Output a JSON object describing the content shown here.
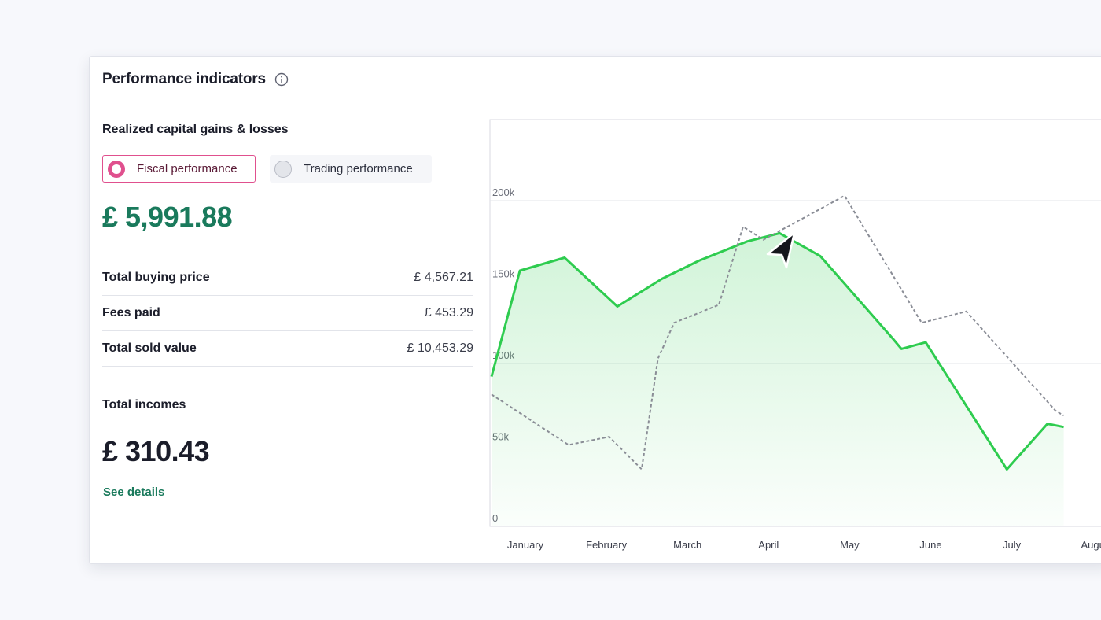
{
  "card": {
    "title": "Performance indicators",
    "info_icon": "info-circle-icon"
  },
  "realized": {
    "title": "Realized capital gains & losses",
    "toggles": {
      "fiscal": "Fiscal performance",
      "trading": "Trading performance",
      "selected": "fiscal"
    },
    "total_value": "£ 5,991.88",
    "rows": [
      {
        "label": "Total buying price",
        "value": "£ 4,567.21"
      },
      {
        "label": "Fees paid",
        "value": "£ 453.29"
      },
      {
        "label": "Total sold value",
        "value": "£ 10,453.29"
      }
    ]
  },
  "incomes": {
    "title": "Total incomes",
    "value": "£ 310.43",
    "link": "See details"
  },
  "colors": {
    "accent_pink": "#e0508e",
    "green_value": "#1a7a5c",
    "series_green": "#2ecc4f",
    "series_dashed": "#8a8d96"
  },
  "chart_data": {
    "type": "area",
    "x_labels": [
      "January",
      "February",
      "March",
      "April",
      "May",
      "June",
      "July",
      "Augu"
    ],
    "y_ticks": [
      0,
      50000,
      100000,
      150000,
      200000
    ],
    "y_tick_labels": [
      "0",
      "50k",
      "100k",
      "150k",
      "200k"
    ],
    "ylim": [
      0,
      250000
    ],
    "grid": true,
    "series": [
      {
        "style": "solid-area",
        "x": [
          0,
          0.35,
          0.9,
          1.55,
          2.1,
          2.55,
          3.15,
          3.55,
          4.05,
          4.95,
          5.05,
          5.35,
          6.35,
          6.85,
          7.05
        ],
        "values": [
          92000,
          157000,
          165000,
          135000,
          152000,
          163000,
          175000,
          180000,
          166000,
          115000,
          109000,
          113000,
          35000,
          63000,
          61000
        ]
      },
      {
        "style": "dashed",
        "x": [
          0,
          0.95,
          1.45,
          1.85,
          2.05,
          2.25,
          2.8,
          3.1,
          3.35,
          4.35,
          5.3,
          5.85,
          6.95,
          7.05
        ],
        "values": [
          81000,
          50000,
          55000,
          35000,
          103000,
          125000,
          136000,
          184000,
          176000,
          203000,
          125000,
          132000,
          71000,
          68000
        ]
      }
    ]
  }
}
